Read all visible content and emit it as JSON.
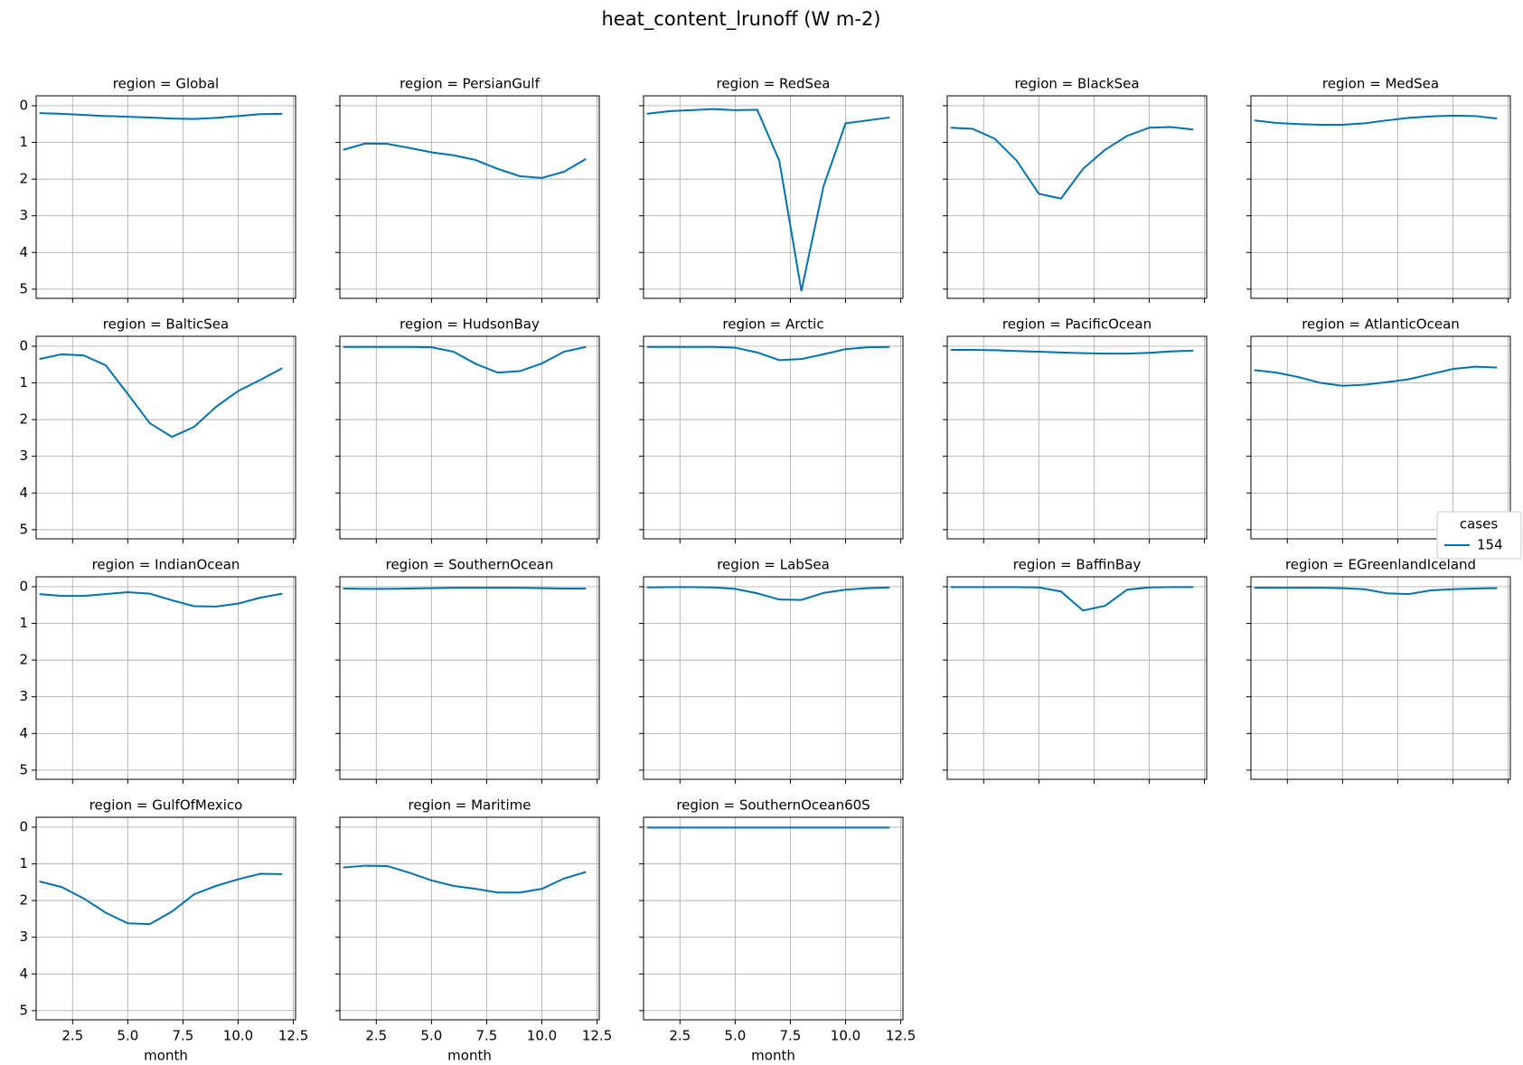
{
  "suptitle": "heat_content_lrunoff (W m-2)",
  "legend_title": "cases",
  "chart_data": [
    {
      "type": "line",
      "title": "region = Global",
      "x": [
        1,
        2,
        3,
        4,
        5,
        6,
        7,
        8,
        9,
        10,
        11,
        12
      ],
      "series": [
        {
          "name": "154",
          "color": "#0072b2",
          "values": [
            0.2,
            0.22,
            0.25,
            0.28,
            0.3,
            0.32,
            0.35,
            0.36,
            0.33,
            0.28,
            0.23,
            0.22
          ]
        }
      ],
      "xlim": [
        0.85,
        12.6
      ],
      "ylim": [
        5.25,
        -0.27
      ],
      "xticks": [
        2.5,
        {
          "value": 5,
          "label": "5.0"
        },
        7.5,
        {
          "value": 10,
          "label": "10.0"
        },
        12.5
      ],
      "yticks": [
        0,
        1,
        2,
        3,
        4,
        5
      ],
      "grid": true,
      "show_yticklabels": true,
      "show_xticklabels": false
    },
    {
      "type": "line",
      "title": "region = PersianGulf",
      "x": [
        1,
        2,
        3,
        4,
        5,
        6,
        7,
        8,
        9,
        10,
        11,
        12
      ],
      "series": [
        {
          "name": "154",
          "color": "#0072b2",
          "values": [
            1.2,
            1.03,
            1.04,
            1.15,
            1.27,
            1.35,
            1.48,
            1.72,
            1.92,
            1.97,
            1.8,
            1.45
          ]
        }
      ],
      "xlim": [
        0.85,
        12.6
      ],
      "ylim": [
        5.25,
        -0.27
      ],
      "xticks": [
        2.5,
        {
          "value": 5,
          "label": "5.0"
        },
        7.5,
        {
          "value": 10,
          "label": "10.0"
        },
        12.5
      ],
      "yticks": [
        0,
        1,
        2,
        3,
        4,
        5
      ],
      "grid": true,
      "show_yticklabels": false,
      "show_xticklabels": false
    },
    {
      "type": "line",
      "title": "region = RedSea",
      "x": [
        1,
        2,
        3,
        4,
        5,
        6,
        7,
        8,
        9,
        10,
        11,
        12
      ],
      "series": [
        {
          "name": "154",
          "color": "#0072b2",
          "values": [
            0.22,
            0.15,
            0.12,
            0.09,
            0.12,
            0.11,
            1.5,
            5.05,
            2.2,
            0.48,
            0.4,
            0.32
          ]
        }
      ],
      "xlim": [
        0.85,
        12.6
      ],
      "ylim": [
        5.25,
        -0.27
      ],
      "xticks": [
        2.5,
        {
          "value": 5,
          "label": "5.0"
        },
        7.5,
        {
          "value": 10,
          "label": "10.0"
        },
        12.5
      ],
      "yticks": [
        0,
        1,
        2,
        3,
        4,
        5
      ],
      "grid": true,
      "show_yticklabels": false,
      "show_xticklabels": false
    },
    {
      "type": "line",
      "title": "region = BlackSea",
      "x": [
        1,
        2,
        3,
        4,
        5,
        6,
        7,
        8,
        9,
        10,
        11,
        12
      ],
      "series": [
        {
          "name": "154",
          "color": "#0072b2",
          "values": [
            0.6,
            0.63,
            0.9,
            1.5,
            2.4,
            2.53,
            1.72,
            1.2,
            0.82,
            0.6,
            0.58,
            0.65
          ]
        }
      ],
      "xlim": [
        0.85,
        12.6
      ],
      "ylim": [
        5.25,
        -0.27
      ],
      "xticks": [
        2.5,
        {
          "value": 5,
          "label": "5.0"
        },
        7.5,
        {
          "value": 10,
          "label": "10.0"
        },
        12.5
      ],
      "yticks": [
        0,
        1,
        2,
        3,
        4,
        5
      ],
      "grid": true,
      "show_yticklabels": false,
      "show_xticklabels": false
    },
    {
      "type": "line",
      "title": "region = MedSea",
      "x": [
        1,
        2,
        3,
        4,
        5,
        6,
        7,
        8,
        9,
        10,
        11,
        12
      ],
      "series": [
        {
          "name": "154",
          "color": "#0072b2",
          "values": [
            0.4,
            0.47,
            0.5,
            0.52,
            0.52,
            0.48,
            0.4,
            0.33,
            0.29,
            0.27,
            0.28,
            0.35
          ]
        }
      ],
      "xlim": [
        0.85,
        12.6
      ],
      "ylim": [
        5.25,
        -0.27
      ],
      "xticks": [
        2.5,
        {
          "value": 5,
          "label": "5.0"
        },
        7.5,
        {
          "value": 10,
          "label": "10.0"
        },
        12.5
      ],
      "yticks": [
        0,
        1,
        2,
        3,
        4,
        5
      ],
      "grid": true,
      "show_yticklabels": false,
      "show_xticklabels": false
    },
    {
      "type": "line",
      "title": "region = BalticSea",
      "x": [
        1,
        2,
        3,
        4,
        5,
        6,
        7,
        8,
        9,
        10,
        11,
        12
      ],
      "series": [
        {
          "name": "154",
          "color": "#0072b2",
          "values": [
            0.35,
            0.22,
            0.25,
            0.52,
            1.3,
            2.1,
            2.47,
            2.2,
            1.65,
            1.22,
            0.92,
            0.6
          ]
        }
      ],
      "xlim": [
        0.85,
        12.6
      ],
      "ylim": [
        5.25,
        -0.27
      ],
      "xticks": [
        2.5,
        {
          "value": 5,
          "label": "5.0"
        },
        7.5,
        {
          "value": 10,
          "label": "10.0"
        },
        12.5
      ],
      "yticks": [
        0,
        1,
        2,
        3,
        4,
        5
      ],
      "grid": true,
      "show_yticklabels": true,
      "show_xticklabels": false
    },
    {
      "type": "line",
      "title": "region = HudsonBay",
      "x": [
        1,
        2,
        3,
        4,
        5,
        6,
        7,
        8,
        9,
        10,
        11,
        12
      ],
      "series": [
        {
          "name": "154",
          "color": "#0072b2",
          "values": [
            0.02,
            0.02,
            0.02,
            0.02,
            0.03,
            0.15,
            0.48,
            0.72,
            0.68,
            0.47,
            0.15,
            0.02
          ]
        }
      ],
      "xlim": [
        0.85,
        12.6
      ],
      "ylim": [
        5.25,
        -0.27
      ],
      "xticks": [
        2.5,
        {
          "value": 5,
          "label": "5.0"
        },
        7.5,
        {
          "value": 10,
          "label": "10.0"
        },
        12.5
      ],
      "yticks": [
        0,
        1,
        2,
        3,
        4,
        5
      ],
      "grid": true,
      "show_yticklabels": false,
      "show_xticklabels": false
    },
    {
      "type": "line",
      "title": "region = Arctic",
      "x": [
        1,
        2,
        3,
        4,
        5,
        6,
        7,
        8,
        9,
        10,
        11,
        12
      ],
      "series": [
        {
          "name": "154",
          "color": "#0072b2",
          "values": [
            0.02,
            0.02,
            0.02,
            0.02,
            0.04,
            0.17,
            0.38,
            0.35,
            0.22,
            0.08,
            0.03,
            0.02
          ]
        }
      ],
      "xlim": [
        0.85,
        12.6
      ],
      "ylim": [
        5.25,
        -0.27
      ],
      "xticks": [
        2.5,
        {
          "value": 5,
          "label": "5.0"
        },
        7.5,
        {
          "value": 10,
          "label": "10.0"
        },
        12.5
      ],
      "yticks": [
        0,
        1,
        2,
        3,
        4,
        5
      ],
      "grid": true,
      "show_yticklabels": false,
      "show_xticklabels": false
    },
    {
      "type": "line",
      "title": "region = PacificOcean",
      "x": [
        1,
        2,
        3,
        4,
        5,
        6,
        7,
        8,
        9,
        10,
        11,
        12
      ],
      "series": [
        {
          "name": "154",
          "color": "#0072b2",
          "values": [
            0.1,
            0.1,
            0.11,
            0.13,
            0.15,
            0.17,
            0.19,
            0.2,
            0.2,
            0.18,
            0.14,
            0.12
          ]
        }
      ],
      "xlim": [
        0.85,
        12.6
      ],
      "ylim": [
        5.25,
        -0.27
      ],
      "xticks": [
        2.5,
        {
          "value": 5,
          "label": "5.0"
        },
        7.5,
        {
          "value": 10,
          "label": "10.0"
        },
        12.5
      ],
      "yticks": [
        0,
        1,
        2,
        3,
        4,
        5
      ],
      "grid": true,
      "show_yticklabels": false,
      "show_xticklabels": false
    },
    {
      "type": "line",
      "title": "region = AtlanticOcean",
      "x": [
        1,
        2,
        3,
        4,
        5,
        6,
        7,
        8,
        9,
        10,
        11,
        12
      ],
      "series": [
        {
          "name": "154",
          "color": "#0072b2",
          "values": [
            0.65,
            0.72,
            0.84,
            1.0,
            1.08,
            1.05,
            0.98,
            0.9,
            0.76,
            0.62,
            0.56,
            0.58
          ]
        }
      ],
      "xlim": [
        0.85,
        12.6
      ],
      "ylim": [
        5.25,
        -0.27
      ],
      "xticks": [
        2.5,
        {
          "value": 5,
          "label": "5.0"
        },
        7.5,
        {
          "value": 10,
          "label": "10.0"
        },
        12.5
      ],
      "yticks": [
        0,
        1,
        2,
        3,
        4,
        5
      ],
      "grid": true,
      "show_yticklabels": false,
      "show_xticklabels": false
    },
    {
      "type": "line",
      "title": "region = IndianOcean",
      "x": [
        1,
        2,
        3,
        4,
        5,
        6,
        7,
        8,
        9,
        10,
        11,
        12
      ],
      "series": [
        {
          "name": "154",
          "color": "#0072b2",
          "values": [
            0.2,
            0.25,
            0.25,
            0.2,
            0.15,
            0.19,
            0.37,
            0.53,
            0.54,
            0.46,
            0.3,
            0.19
          ]
        }
      ],
      "xlim": [
        0.85,
        12.6
      ],
      "ylim": [
        5.25,
        -0.27
      ],
      "xticks": [
        2.5,
        {
          "value": 5,
          "label": "5.0"
        },
        7.5,
        {
          "value": 10,
          "label": "10.0"
        },
        12.5
      ],
      "yticks": [
        0,
        1,
        2,
        3,
        4,
        5
      ],
      "grid": true,
      "show_yticklabels": true,
      "show_xticklabels": false
    },
    {
      "type": "line",
      "title": "region = SouthernOcean",
      "x": [
        1,
        2,
        3,
        4,
        5,
        6,
        7,
        8,
        9,
        10,
        11,
        12
      ],
      "series": [
        {
          "name": "154",
          "color": "#0072b2",
          "values": [
            0.05,
            0.06,
            0.06,
            0.05,
            0.04,
            0.03,
            0.03,
            0.03,
            0.03,
            0.04,
            0.05,
            0.05
          ]
        }
      ],
      "xlim": [
        0.85,
        12.6
      ],
      "ylim": [
        5.25,
        -0.27
      ],
      "xticks": [
        2.5,
        {
          "value": 5,
          "label": "5.0"
        },
        7.5,
        {
          "value": 10,
          "label": "10.0"
        },
        12.5
      ],
      "yticks": [
        0,
        1,
        2,
        3,
        4,
        5
      ],
      "grid": true,
      "show_yticklabels": false,
      "show_xticklabels": false
    },
    {
      "type": "line",
      "title": "region = LabSea",
      "x": [
        1,
        2,
        3,
        4,
        5,
        6,
        7,
        8,
        9,
        10,
        11,
        12
      ],
      "series": [
        {
          "name": "154",
          "color": "#0072b2",
          "values": [
            0.02,
            0.01,
            0.01,
            0.02,
            0.06,
            0.18,
            0.35,
            0.36,
            0.17,
            0.08,
            0.04,
            0.02
          ]
        }
      ],
      "xlim": [
        0.85,
        12.6
      ],
      "ylim": [
        5.25,
        -0.27
      ],
      "xticks": [
        2.5,
        {
          "value": 5,
          "label": "5.0"
        },
        7.5,
        {
          "value": 10,
          "label": "10.0"
        },
        12.5
      ],
      "yticks": [
        0,
        1,
        2,
        3,
        4,
        5
      ],
      "grid": true,
      "show_yticklabels": false,
      "show_xticklabels": false
    },
    {
      "type": "line",
      "title": "region = BaffinBay",
      "x": [
        1,
        2,
        3,
        4,
        5,
        6,
        7,
        8,
        9,
        10,
        11,
        12
      ],
      "series": [
        {
          "name": "154",
          "color": "#0072b2",
          "values": [
            0.01,
            0.01,
            0.01,
            0.01,
            0.02,
            0.13,
            0.65,
            0.52,
            0.08,
            0.02,
            0.01,
            0.01
          ]
        }
      ],
      "xlim": [
        0.85,
        12.6
      ],
      "ylim": [
        5.25,
        -0.27
      ],
      "xticks": [
        2.5,
        {
          "value": 5,
          "label": "5.0"
        },
        7.5,
        {
          "value": 10,
          "label": "10.0"
        },
        12.5
      ],
      "yticks": [
        0,
        1,
        2,
        3,
        4,
        5
      ],
      "grid": true,
      "show_yticklabels": false,
      "show_xticklabels": false
    },
    {
      "type": "line",
      "title": "region = EGreenlandIceland",
      "x": [
        1,
        2,
        3,
        4,
        5,
        6,
        7,
        8,
        9,
        10,
        11,
        12
      ],
      "series": [
        {
          "name": "154",
          "color": "#0072b2",
          "values": [
            0.03,
            0.03,
            0.03,
            0.03,
            0.04,
            0.07,
            0.18,
            0.2,
            0.1,
            0.07,
            0.05,
            0.04
          ]
        }
      ],
      "xlim": [
        0.85,
        12.6
      ],
      "ylim": [
        5.25,
        -0.27
      ],
      "xticks": [
        2.5,
        {
          "value": 5,
          "label": "5.0"
        },
        7.5,
        {
          "value": 10,
          "label": "10.0"
        },
        12.5
      ],
      "yticks": [
        0,
        1,
        2,
        3,
        4,
        5
      ],
      "grid": true,
      "show_yticklabels": false,
      "show_xticklabels": false
    },
    {
      "type": "line",
      "title": "region = GulfOfMexico",
      "x": [
        1,
        2,
        3,
        4,
        5,
        6,
        7,
        8,
        9,
        10,
        11,
        12
      ],
      "series": [
        {
          "name": "154",
          "color": "#0072b2",
          "values": [
            1.48,
            1.63,
            1.94,
            2.33,
            2.62,
            2.64,
            2.3,
            1.83,
            1.6,
            1.42,
            1.27,
            1.28
          ]
        }
      ],
      "xlim": [
        0.85,
        12.6
      ],
      "ylim": [
        5.25,
        -0.27
      ],
      "xticks": [
        2.5,
        {
          "value": 5,
          "label": "5.0"
        },
        7.5,
        {
          "value": 10,
          "label": "10.0"
        },
        12.5
      ],
      "yticks": [
        0,
        1,
        2,
        3,
        4,
        5
      ],
      "grid": true,
      "show_yticklabels": true,
      "show_xticklabels": true,
      "xlabel": "month"
    },
    {
      "type": "line",
      "title": "region = Maritime",
      "x": [
        1,
        2,
        3,
        4,
        5,
        6,
        7,
        8,
        9,
        10,
        11,
        12
      ],
      "series": [
        {
          "name": "154",
          "color": "#0072b2",
          "values": [
            1.1,
            1.05,
            1.06,
            1.24,
            1.45,
            1.6,
            1.68,
            1.78,
            1.78,
            1.68,
            1.4,
            1.22
          ]
        }
      ],
      "xlim": [
        0.85,
        12.6
      ],
      "ylim": [
        5.25,
        -0.27
      ],
      "xticks": [
        2.5,
        {
          "value": 5,
          "label": "5.0"
        },
        7.5,
        {
          "value": 10,
          "label": "10.0"
        },
        12.5
      ],
      "yticks": [
        0,
        1,
        2,
        3,
        4,
        5
      ],
      "grid": true,
      "show_yticklabels": false,
      "show_xticklabels": true,
      "xlabel": "month"
    },
    {
      "type": "line",
      "title": "region = SouthernOcean60S",
      "x": [
        1,
        2,
        3,
        4,
        5,
        6,
        7,
        8,
        9,
        10,
        11,
        12
      ],
      "series": [
        {
          "name": "154",
          "color": "#0072b2",
          "values": [
            0.01,
            0.01,
            0.01,
            0.01,
            0.01,
            0.01,
            0.01,
            0.01,
            0.01,
            0.01,
            0.01,
            0.01
          ]
        }
      ],
      "xlim": [
        0.85,
        12.6
      ],
      "ylim": [
        5.25,
        -0.27
      ],
      "xticks": [
        2.5,
        {
          "value": 5,
          "label": "5.0"
        },
        7.5,
        {
          "value": 10,
          "label": "10.0"
        },
        12.5
      ],
      "yticks": [
        0,
        1,
        2,
        3,
        4,
        5
      ],
      "grid": true,
      "show_yticklabels": false,
      "show_xticklabels": true,
      "xlabel": "month"
    }
  ]
}
